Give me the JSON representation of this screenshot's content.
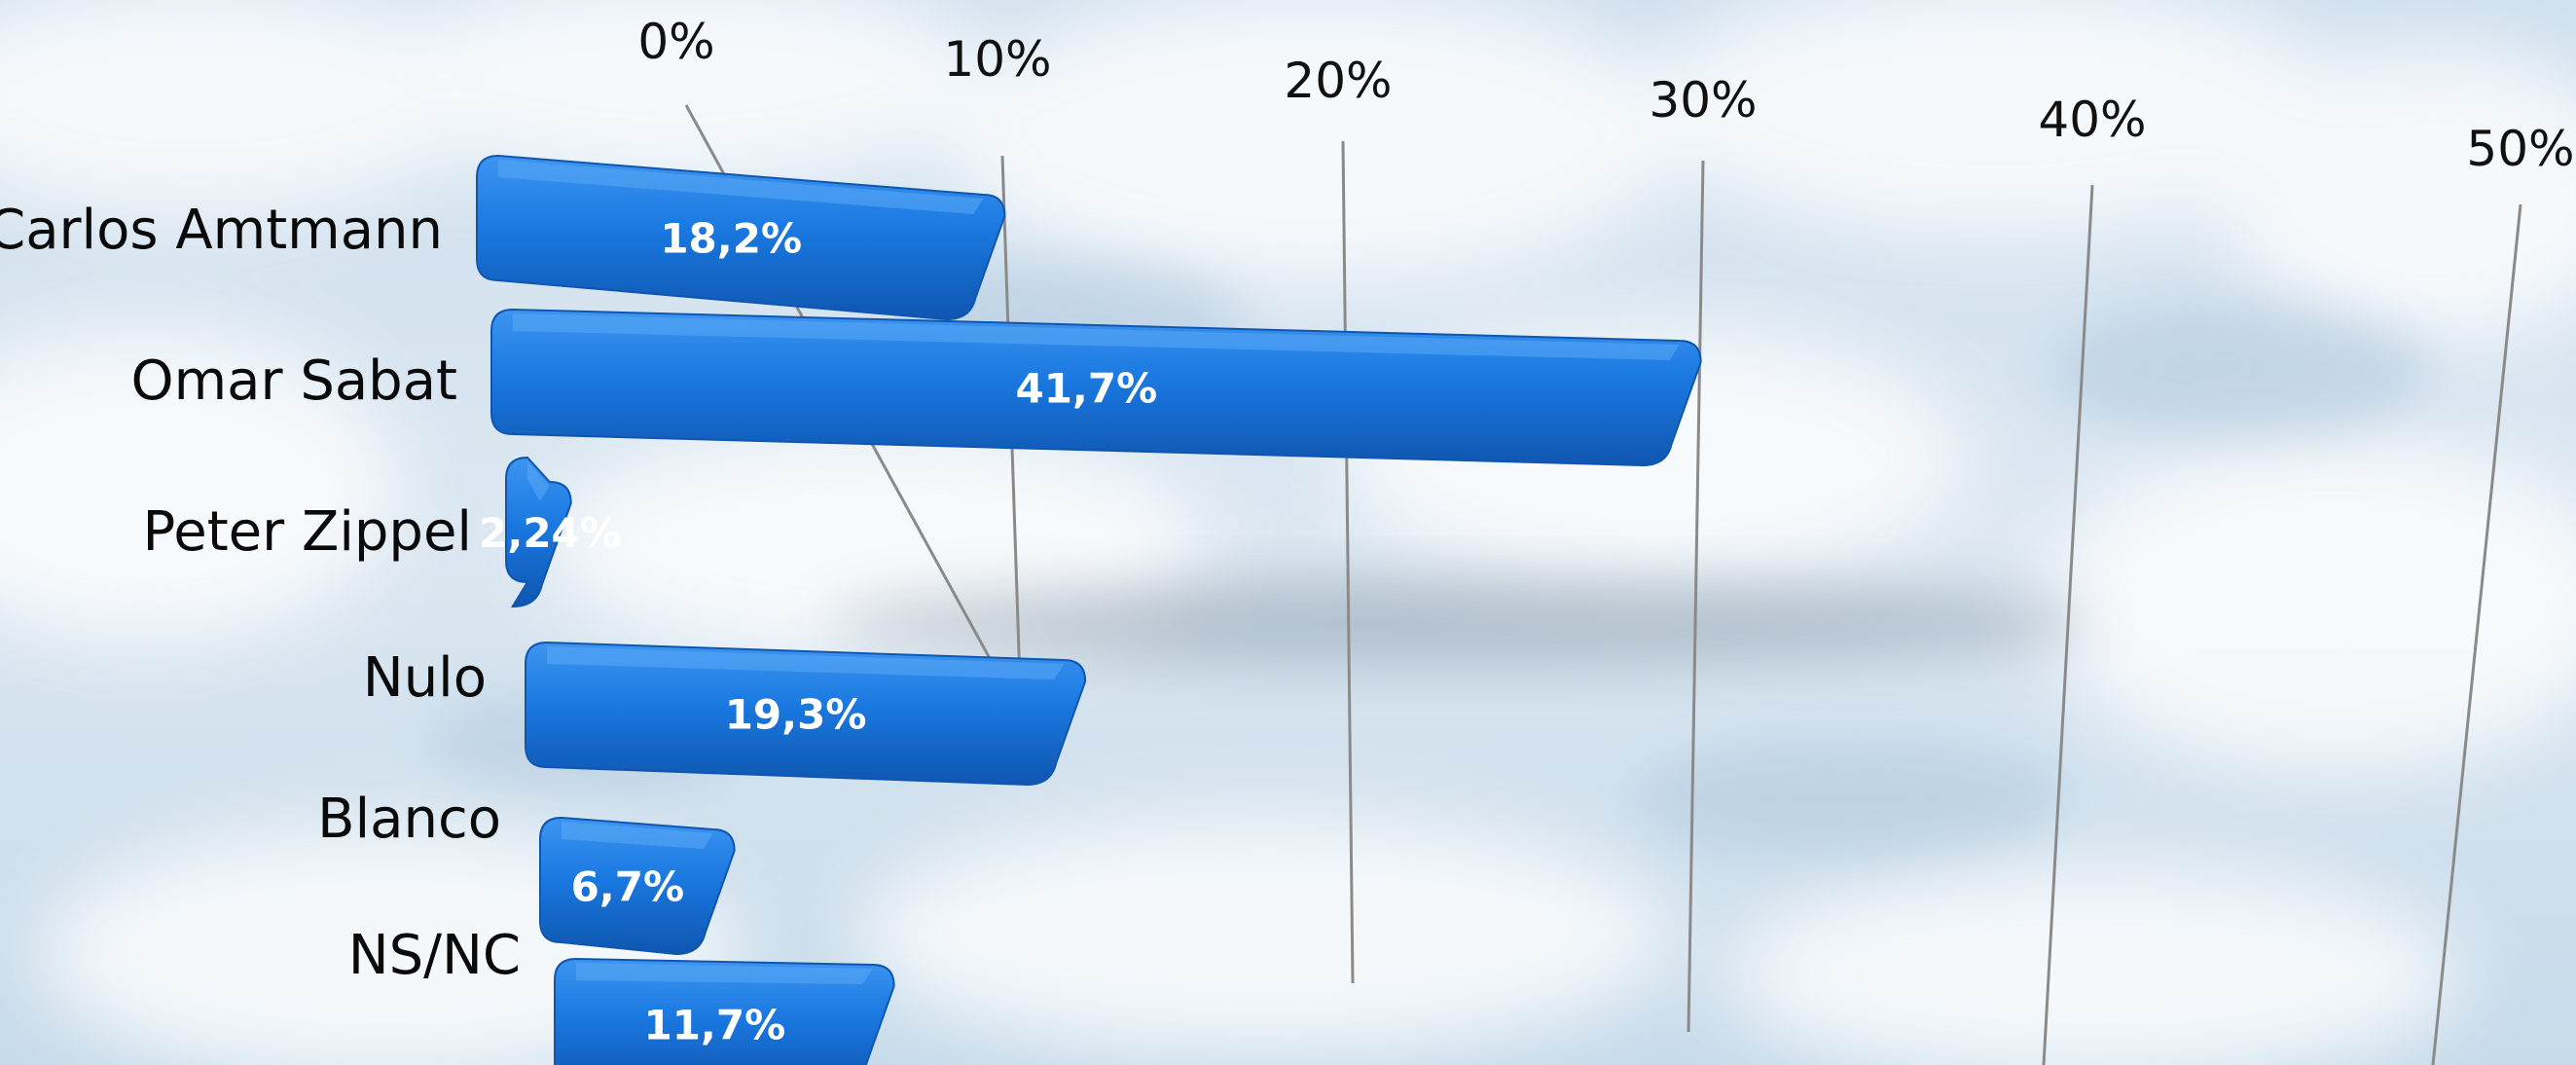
{
  "chart_data": {
    "type": "bar",
    "orientation": "horizontal",
    "title": "",
    "xlabel": "",
    "ylabel": "",
    "xlim": [
      0,
      50
    ],
    "ticks": [
      0,
      10,
      20,
      30,
      40,
      50
    ],
    "tick_labels": [
      "0%",
      "10%",
      "20%",
      "30%",
      "40%",
      "50%"
    ],
    "categories": [
      "Carlos Amtmann",
      "Omar Sabat",
      "Peter Zippel",
      "Nulo",
      "Blanco",
      "NS/NC"
    ],
    "values": [
      18.2,
      41.7,
      2.24,
      19.3,
      6.7,
      11.7
    ],
    "value_labels": [
      "18,2%",
      "41,7%",
      "2,24%",
      "19,3%",
      "6,7%",
      "11,7%"
    ],
    "grid": true,
    "legend": "none",
    "colors": {
      "bar": "#1a78e0",
      "bar_dark": "#0f56b0",
      "bar_light": "#3d95f0"
    }
  }
}
